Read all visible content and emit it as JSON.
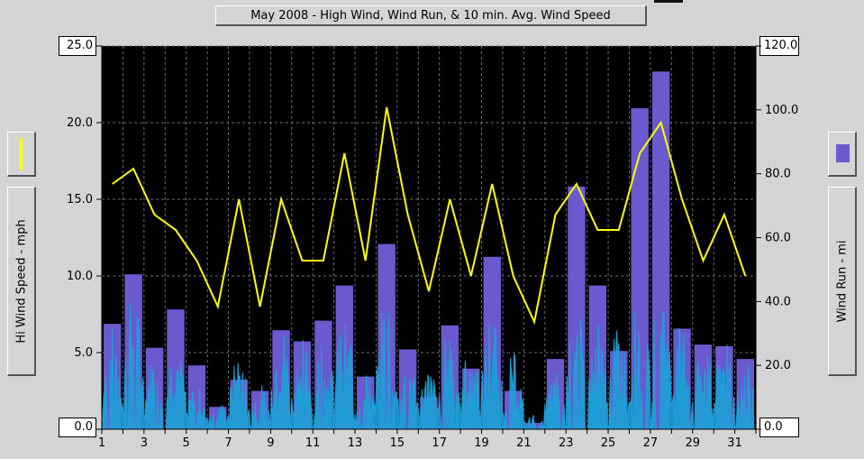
{
  "chart_data": {
    "type": "bar+line",
    "title": "May 2008 - High Wind, Wind Run, & 10 min. Avg. Wind Speed",
    "left_axis": {
      "label": "Hi Wind Speed - mph",
      "range": [
        0,
        25
      ],
      "ticks": [
        "0.0",
        "5.0",
        "10.0",
        "15.0",
        "20.0",
        "25.0"
      ],
      "tick_values": [
        0,
        5,
        10,
        15,
        20,
        25
      ]
    },
    "right_axis": {
      "label": "Wind Run - mi",
      "range": [
        0,
        120
      ],
      "ticks": [
        "0.0",
        "20.0",
        "40.0",
        "60.0",
        "80.0",
        "100.0",
        "120.0"
      ],
      "tick_values": [
        0,
        20,
        40,
        60,
        80,
        100,
        120
      ]
    },
    "x_axis": {
      "range": [
        1,
        32
      ],
      "ticks": [
        "1",
        "3",
        "5",
        "7",
        "9",
        "11",
        "13",
        "15",
        "17",
        "19",
        "21",
        "23",
        "25",
        "27",
        "29",
        "31"
      ],
      "tick_values": [
        1,
        3,
        5,
        7,
        9,
        11,
        13,
        15,
        17,
        19,
        21,
        23,
        25,
        27,
        29,
        31
      ]
    },
    "days": [
      1,
      2,
      3,
      4,
      5,
      6,
      7,
      8,
      9,
      10,
      11,
      12,
      13,
      14,
      15,
      16,
      17,
      18,
      19,
      20,
      21,
      22,
      23,
      24,
      25,
      26,
      27,
      28,
      29,
      30,
      31
    ],
    "series": [
      {
        "name": "Wind Run - mi",
        "kind": "bar",
        "color": "#6a5acd",
        "values": [
          33,
          48.5,
          25.5,
          37.5,
          20,
          7,
          15.5,
          12,
          31,
          27.5,
          34,
          45,
          16.5,
          58,
          25,
          10,
          32.5,
          19,
          54,
          12,
          2,
          22,
          76,
          45,
          24.5,
          100.5,
          112,
          31.5,
          26.5,
          26,
          22
        ]
      },
      {
        "name": "Hi Wind Speed - mph",
        "kind": "line",
        "color": "#ffff00",
        "values": [
          16,
          17,
          14,
          13,
          11,
          8,
          15,
          8,
          15,
          11,
          11,
          18,
          11,
          21,
          14,
          9,
          15,
          10,
          16,
          10,
          7,
          14,
          16,
          13,
          13,
          18,
          20,
          15,
          11,
          14,
          10
        ]
      },
      {
        "name": "10 min. Avg. Wind Speed",
        "kind": "area",
        "color": "#1e9fd6",
        "peaks": [
          7,
          9,
          5,
          6,
          3,
          2,
          5,
          3,
          7,
          6,
          7,
          8,
          4,
          9,
          5,
          4,
          7,
          6,
          8,
          5,
          1,
          4,
          8,
          7,
          7,
          9,
          10,
          7,
          6,
          6,
          5
        ]
      }
    ],
    "legend": [
      {
        "label": "Hi Wind Speed - mph",
        "side": "left",
        "color": "#ffff00"
      },
      {
        "label": "Wind Run - mi",
        "side": "right",
        "color": "#6a5acd"
      }
    ],
    "cursor_readout": {
      "left_top": "25.0",
      "left_bottom": "0.0",
      "right_top": "120.0",
      "right_bottom": "0.0"
    },
    "grid": true
  }
}
